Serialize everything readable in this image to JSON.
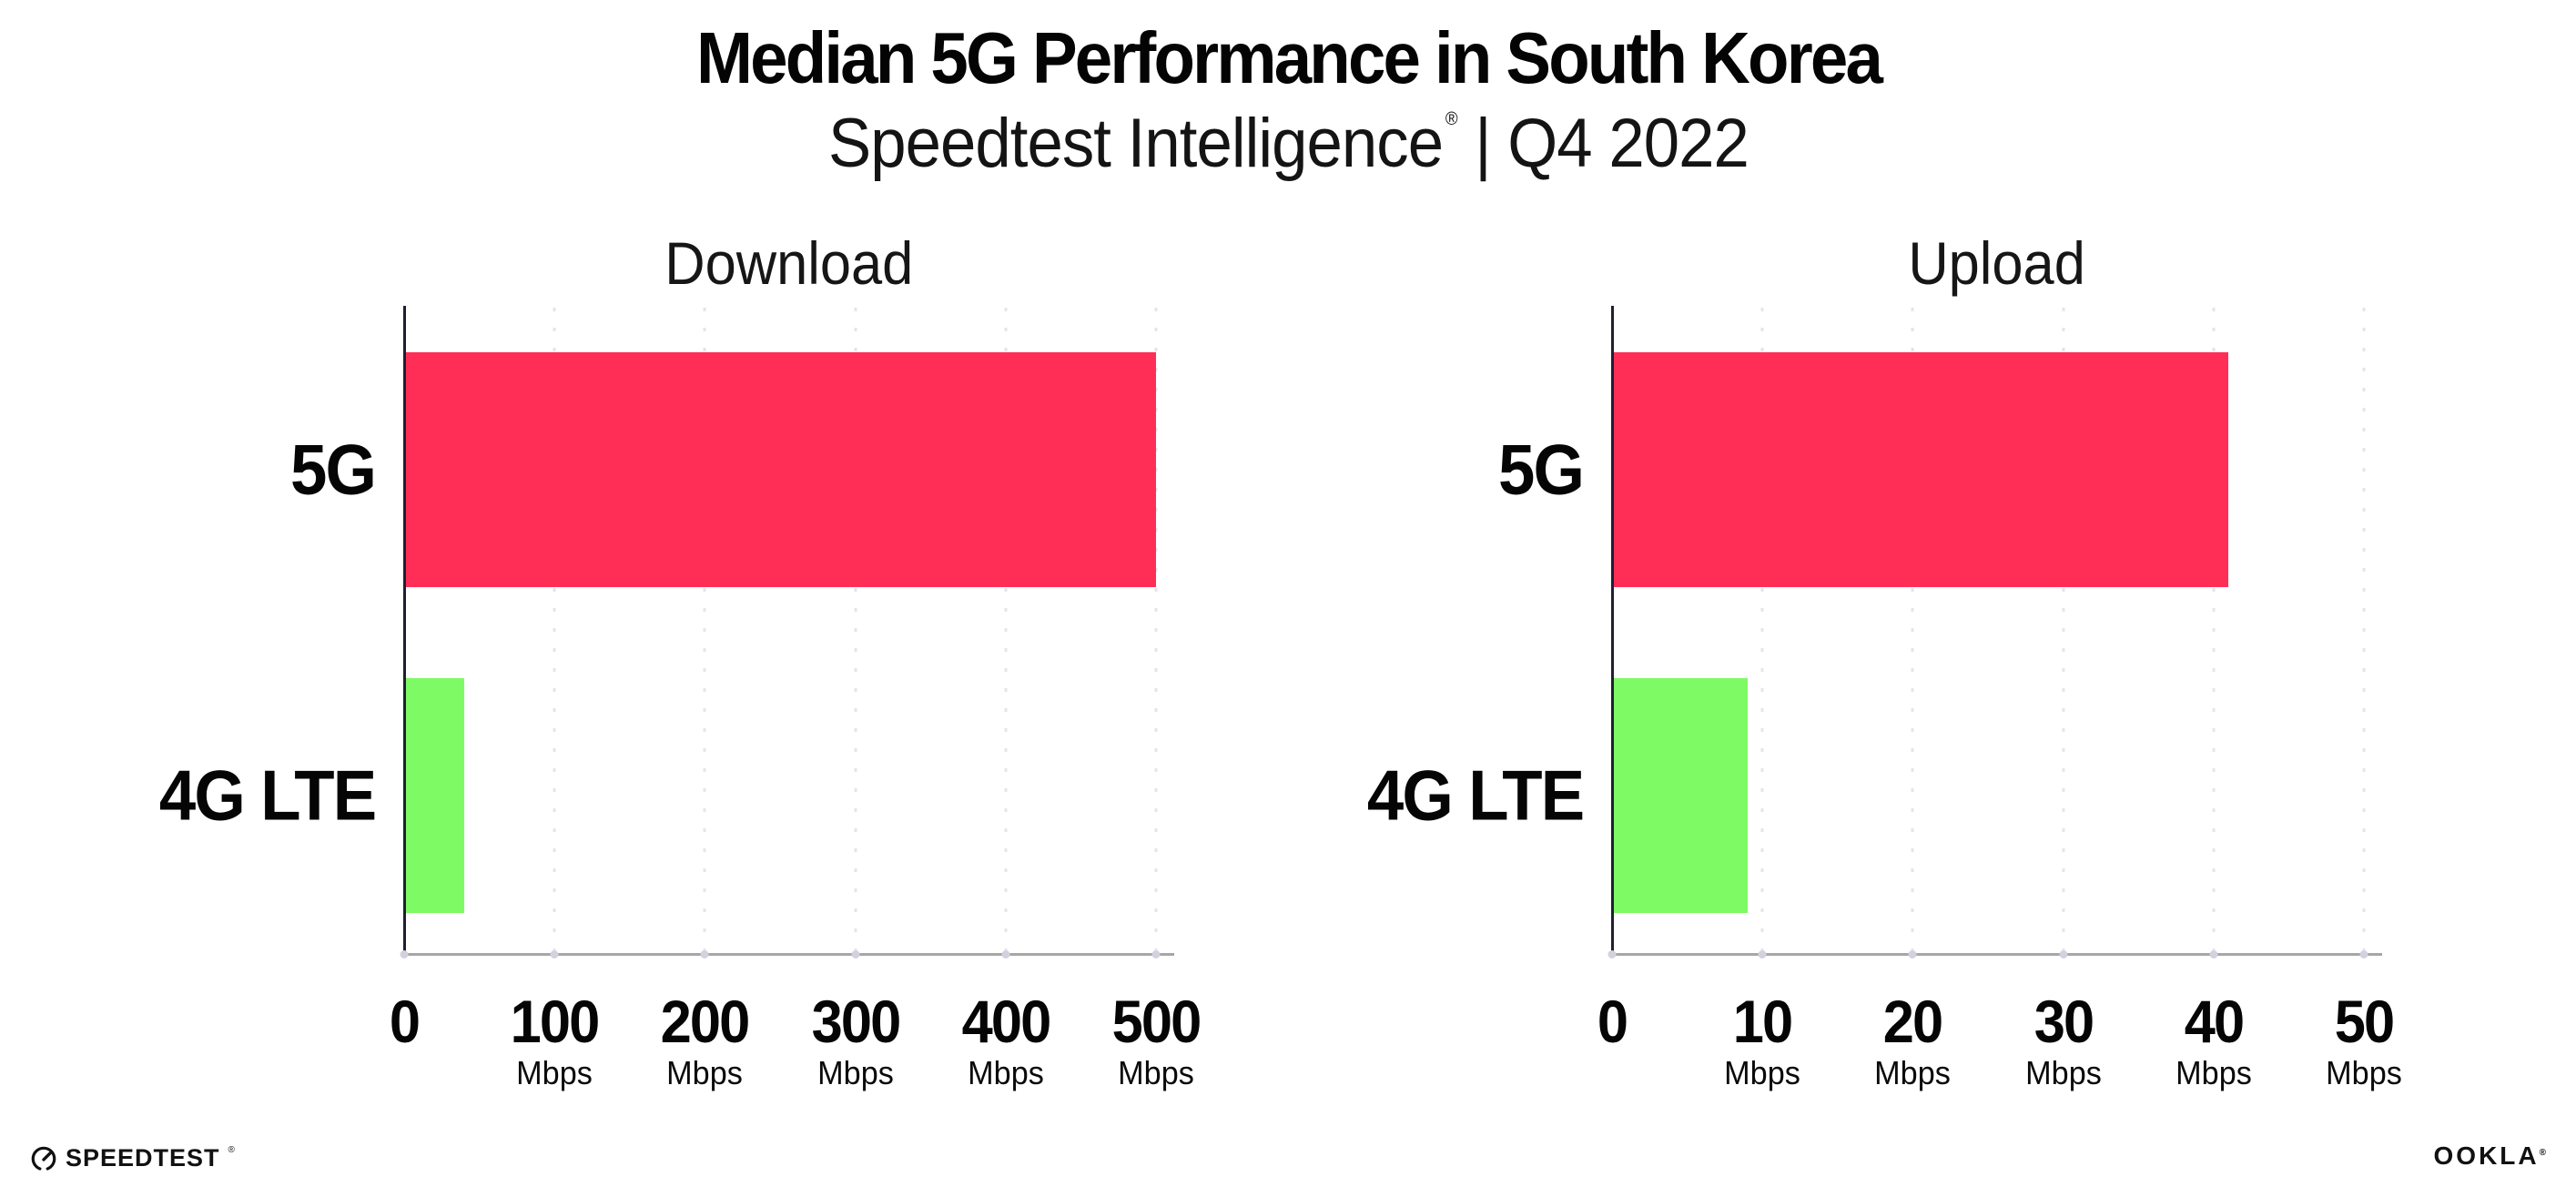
{
  "header": {
    "title": "Median 5G Performance in South Korea",
    "subtitle": {
      "brand": "Speedtest Intelligence",
      "registered_mark": "®",
      "separator": "|",
      "period": "Q4 2022"
    }
  },
  "chart_data": [
    {
      "type": "bar",
      "orientation": "horizontal",
      "title": "Download",
      "categories": [
        "5G",
        "4G LTE"
      ],
      "values": [
        500,
        40
      ],
      "unit": "Mbps",
      "xlabel": "Mbps",
      "ylabel": "",
      "xticks": [
        0,
        100,
        200,
        300,
        400,
        500
      ],
      "xlim": [
        0,
        512
      ],
      "grid": "vertical-dotted",
      "legend": "none",
      "series_colors": [
        "#FF2E57",
        "#7EFB64"
      ]
    },
    {
      "type": "bar",
      "orientation": "horizontal",
      "title": "Upload",
      "categories": [
        "5G",
        "4G LTE"
      ],
      "values": [
        41,
        9
      ],
      "unit": "Mbps",
      "xlabel": "Mbps",
      "ylabel": "",
      "xticks": [
        0,
        10,
        20,
        30,
        40,
        50
      ],
      "xlim": [
        0,
        51.2
      ],
      "grid": "vertical-dotted",
      "legend": "none",
      "series_colors": [
        "#FF2E57",
        "#7EFB64"
      ]
    }
  ],
  "colors": {
    "bar_5g": "#FF2E57",
    "bar_4g_lte": "#7EFB64",
    "gridline": "#E4E4EE",
    "y_axis": "#1F1F30",
    "x_axis": "#A6A6A6",
    "text": "#050505",
    "background": "#FFFFFF"
  },
  "footer": {
    "speedtest_logo": {
      "label": "SPEEDTEST",
      "registered_mark": "®",
      "icon": "speedtest-gauge-icon"
    },
    "ookla_logo": {
      "label": "OOKLA",
      "registered_mark": "®"
    }
  }
}
